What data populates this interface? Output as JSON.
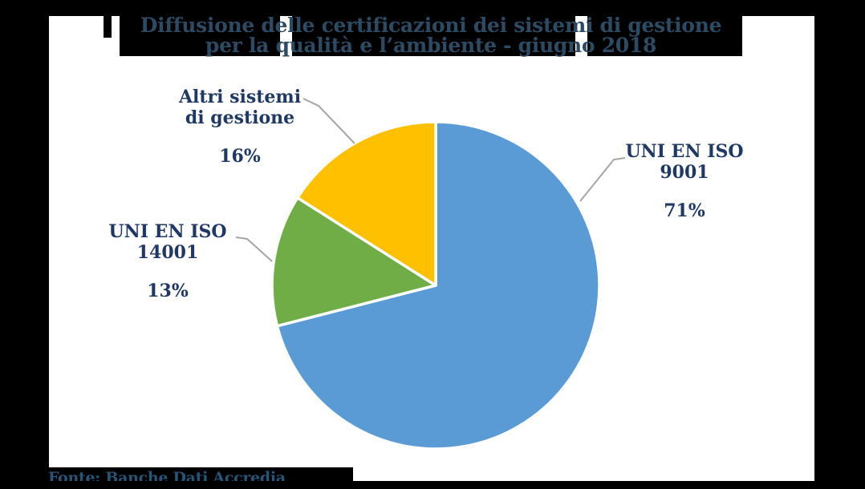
{
  "chart_data": {
    "type": "pie",
    "title": "Diffusione delle certificazioni dei sistemi di gestione per la qualità e l’ambiente - giugno 2018",
    "title_lines": [
      "Diffusione delle certificazioni dei sistemi di gestione",
      "per la qualità e l’ambiente - giugno 2018"
    ],
    "source": "Fonte: Banche Dati Accredia",
    "unit": "%",
    "start_angle_deg": 0,
    "direction": "clockwise",
    "legend": "none (callout labels)",
    "slices": [
      {
        "name": "UNI EN ISO 9001",
        "label_lines": [
          "UNI EN ISO",
          "9001"
        ],
        "value": 71,
        "pct_label": "71%",
        "color": "#5B9BD5"
      },
      {
        "name": "UNI EN ISO 14001",
        "label_lines": [
          "UNI EN ISO",
          "14001"
        ],
        "value": 13,
        "pct_label": "13%",
        "color": "#70AD47"
      },
      {
        "name": "Altri sistemi di gestione",
        "label_lines": [
          "Altri sistemi",
          "di gestione"
        ],
        "value": 16,
        "pct_label": "16%",
        "color": "#FFC000"
      }
    ],
    "colors": {
      "canvas_background": "#000000",
      "plot_background": "#FFFFFF",
      "title_text": "#2C4B63",
      "label_text": "#1F3864",
      "source_text": "#275577",
      "callout_line": "#A6A6A6",
      "slice_border": "#FFFFFF"
    }
  }
}
